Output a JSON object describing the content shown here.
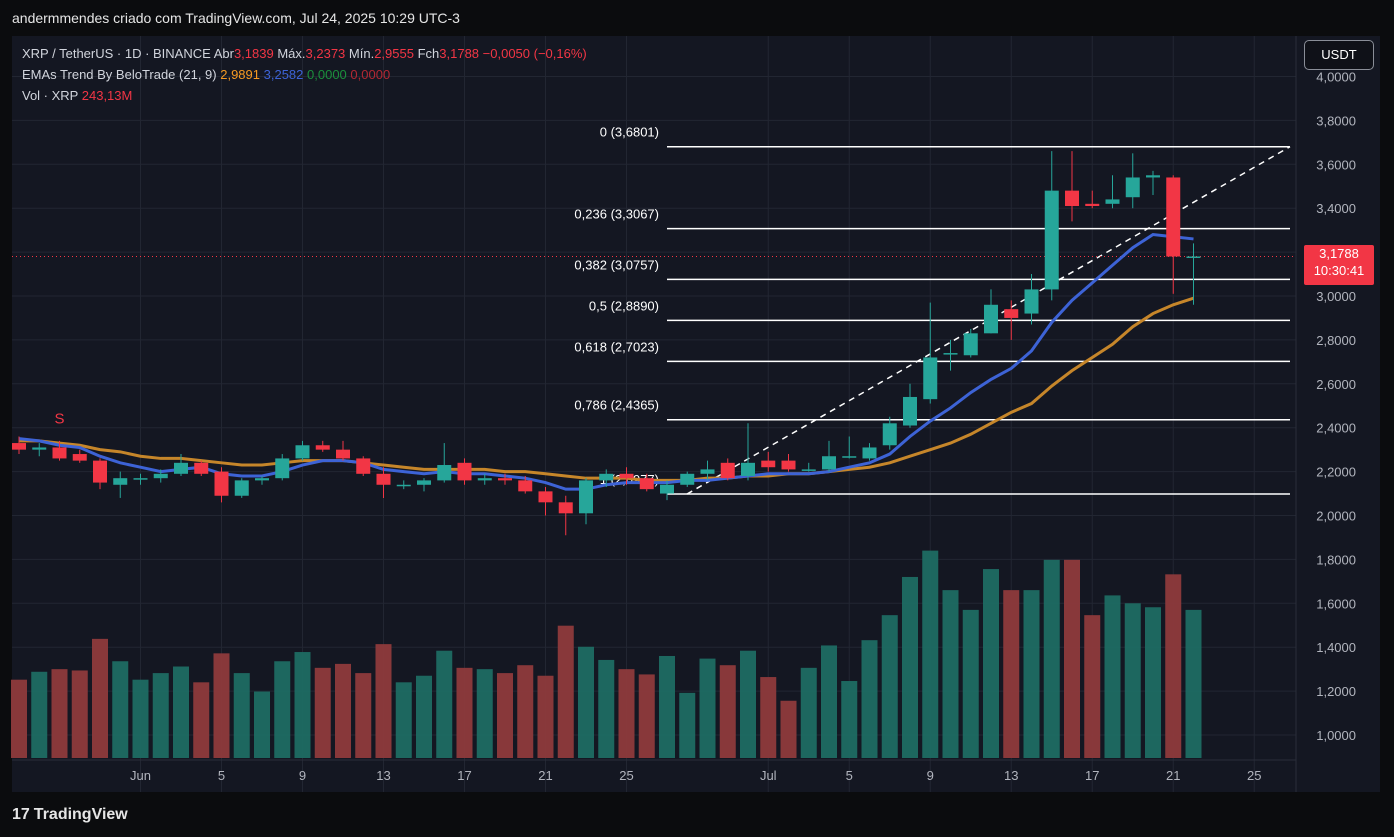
{
  "header": {
    "author_line": "andermmendes criado com TradingView.com, Jul 24, 2025 10:29 UTC-3"
  },
  "legend": {
    "symbol": "XRP / TetherUS · 1D · BINANCE",
    "open_label": "Abr",
    "open": "3,1839",
    "high_label": "Máx.",
    "high": "3,2373",
    "low_label": "Mín.",
    "low": "2,9555",
    "close_label": "Fch",
    "close": "3,1788",
    "change": "−0,0050 (−0,16%)",
    "ema_name": "EMAs Trend By BeloTrade (21, 9)",
    "ema_v1": "2,9891",
    "ema_v2": "3,2582",
    "ema_v3": "0,0000",
    "ema_v4": "0,0000",
    "vol_name": "Vol · XRP",
    "vol_value": "243,13M"
  },
  "price_axis": {
    "currency": "USDT",
    "last_price": "3,1788",
    "countdown": "10:30:41"
  },
  "footer": {
    "logo_text": "TradingView",
    "logo_mark": "17"
  },
  "colors": {
    "up": "#26a69a",
    "down": "#f23645",
    "ema_fast": "#3d63d6",
    "ema_slow": "#c6862a",
    "background": "#141722",
    "grid": "#222632"
  },
  "chart_data": {
    "type": "candlestick",
    "title": "XRP / TetherUS · 1D · BINANCE",
    "y_tick_labels": [
      "1,0000",
      "1,2000",
      "1,4000",
      "1,6000",
      "1,8000",
      "2,0000",
      "2,2000",
      "2,4000",
      "2,6000",
      "2,8000",
      "3,0000",
      "3,2000",
      "3,4000",
      "3,6000",
      "3,8000",
      "4,0000"
    ],
    "x_tick_labels": [
      "Jun",
      "5",
      "9",
      "13",
      "17",
      "21",
      "25",
      "Jul",
      "5",
      "9",
      "13",
      "17",
      "21",
      "25"
    ],
    "ylim": [
      0.9,
      4.05
    ],
    "candles": [
      {
        "date": "2025-05-31",
        "o": 2.33,
        "h": 2.36,
        "l": 2.28,
        "c": 2.3
      },
      {
        "date": "2025-06-01",
        "o": 2.3,
        "h": 2.33,
        "l": 2.27,
        "c": 2.31
      },
      {
        "date": "2025-06-02",
        "o": 2.31,
        "h": 2.34,
        "l": 2.25,
        "c": 2.26
      },
      {
        "date": "2025-06-03",
        "o": 2.28,
        "h": 2.3,
        "l": 2.24,
        "c": 2.25
      },
      {
        "date": "2025-06-04",
        "o": 2.25,
        "h": 2.26,
        "l": 2.12,
        "c": 2.15
      },
      {
        "date": "2025-06-05",
        "o": 2.14,
        "h": 2.2,
        "l": 2.08,
        "c": 2.17
      },
      {
        "date": "2025-06-06",
        "o": 2.17,
        "h": 2.19,
        "l": 2.14,
        "c": 2.17
      },
      {
        "date": "2025-06-07",
        "o": 2.17,
        "h": 2.21,
        "l": 2.15,
        "c": 2.19
      },
      {
        "date": "2025-06-08",
        "o": 2.19,
        "h": 2.28,
        "l": 2.18,
        "c": 2.24
      },
      {
        "date": "2025-06-09",
        "o": 2.24,
        "h": 2.25,
        "l": 2.18,
        "c": 2.19
      },
      {
        "date": "2025-06-10",
        "o": 2.2,
        "h": 2.22,
        "l": 2.06,
        "c": 2.09
      },
      {
        "date": "2025-06-11",
        "o": 2.09,
        "h": 2.17,
        "l": 2.08,
        "c": 2.16
      },
      {
        "date": "2025-06-12",
        "o": 2.16,
        "h": 2.18,
        "l": 2.14,
        "c": 2.17
      },
      {
        "date": "2025-06-13",
        "o": 2.17,
        "h": 2.28,
        "l": 2.16,
        "c": 2.26
      },
      {
        "date": "2025-06-14",
        "o": 2.26,
        "h": 2.34,
        "l": 2.25,
        "c": 2.32
      },
      {
        "date": "2025-06-15",
        "o": 2.32,
        "h": 2.34,
        "l": 2.29,
        "c": 2.3
      },
      {
        "date": "2025-06-16",
        "o": 2.3,
        "h": 2.34,
        "l": 2.25,
        "c": 2.26
      },
      {
        "date": "2025-06-17",
        "o": 2.26,
        "h": 2.27,
        "l": 2.18,
        "c": 2.19
      },
      {
        "date": "2025-06-18",
        "o": 2.19,
        "h": 2.22,
        "l": 2.08,
        "c": 2.14
      },
      {
        "date": "2025-06-19",
        "o": 2.14,
        "h": 2.16,
        "l": 2.12,
        "c": 2.14
      },
      {
        "date": "2025-06-20",
        "o": 2.14,
        "h": 2.17,
        "l": 2.11,
        "c": 2.16
      },
      {
        "date": "2025-06-21",
        "o": 2.16,
        "h": 2.33,
        "l": 2.15,
        "c": 2.23
      },
      {
        "date": "2025-06-22",
        "o": 2.24,
        "h": 2.26,
        "l": 2.14,
        "c": 2.16
      },
      {
        "date": "2025-06-23",
        "o": 2.16,
        "h": 2.19,
        "l": 2.14,
        "c": 2.17
      },
      {
        "date": "2025-06-24",
        "o": 2.17,
        "h": 2.19,
        "l": 2.14,
        "c": 2.16
      },
      {
        "date": "2025-06-25",
        "o": 2.16,
        "h": 2.18,
        "l": 2.1,
        "c": 2.11
      },
      {
        "date": "2025-06-26",
        "o": 2.11,
        "h": 2.13,
        "l": 2.0,
        "c": 2.06
      },
      {
        "date": "2025-06-27",
        "o": 2.06,
        "h": 2.09,
        "l": 1.91,
        "c": 2.01
      },
      {
        "date": "2025-06-28",
        "o": 2.01,
        "h": 2.17,
        "l": 1.96,
        "c": 2.16
      },
      {
        "date": "2025-06-29",
        "o": 2.16,
        "h": 2.21,
        "l": 2.13,
        "c": 2.19
      },
      {
        "date": "2025-06-30",
        "o": 2.19,
        "h": 2.22,
        "l": 2.14,
        "c": 2.17
      },
      {
        "date": "2025-07-01",
        "o": 2.17,
        "h": 2.19,
        "l": 2.11,
        "c": 2.12
      },
      {
        "date": "2025-07-02",
        "o": 2.1,
        "h": 2.16,
        "l": 2.07,
        "c": 2.14
      },
      {
        "date": "2025-07-03",
        "o": 2.14,
        "h": 2.2,
        "l": 2.13,
        "c": 2.19
      },
      {
        "date": "2025-07-04",
        "o": 2.19,
        "h": 2.25,
        "l": 2.16,
        "c": 2.21
      },
      {
        "date": "2025-07-05",
        "o": 2.24,
        "h": 2.26,
        "l": 2.16,
        "c": 2.17
      },
      {
        "date": "2025-07-06",
        "o": 2.18,
        "h": 2.42,
        "l": 2.16,
        "c": 2.24
      },
      {
        "date": "2025-07-07",
        "o": 2.25,
        "h": 2.29,
        "l": 2.2,
        "c": 2.22
      },
      {
        "date": "2025-07-08",
        "o": 2.25,
        "h": 2.28,
        "l": 2.2,
        "c": 2.21
      },
      {
        "date": "2025-07-09",
        "o": 2.21,
        "h": 2.24,
        "l": 2.2,
        "c": 2.21
      },
      {
        "date": "2025-07-10",
        "o": 2.21,
        "h": 2.34,
        "l": 2.2,
        "c": 2.27
      },
      {
        "date": "2025-07-11",
        "o": 2.27,
        "h": 2.36,
        "l": 2.26,
        "c": 2.27
      },
      {
        "date": "2025-07-12",
        "o": 2.26,
        "h": 2.33,
        "l": 2.25,
        "c": 2.31
      },
      {
        "date": "2025-07-13",
        "o": 2.32,
        "h": 2.45,
        "l": 2.3,
        "c": 2.42
      },
      {
        "date": "2025-07-14",
        "o": 2.41,
        "h": 2.6,
        "l": 2.4,
        "c": 2.54
      },
      {
        "date": "2025-07-15",
        "o": 2.53,
        "h": 2.97,
        "l": 2.51,
        "c": 2.72
      },
      {
        "date": "2025-07-16",
        "o": 2.74,
        "h": 2.8,
        "l": 2.66,
        "c": 2.74
      },
      {
        "date": "2025-07-17",
        "o": 2.73,
        "h": 2.85,
        "l": 2.72,
        "c": 2.83
      },
      {
        "date": "2025-07-18",
        "o": 2.83,
        "h": 3.03,
        "l": 2.83,
        "c": 2.96
      },
      {
        "date": "2025-07-19",
        "o": 2.94,
        "h": 2.98,
        "l": 2.8,
        "c": 2.9
      },
      {
        "date": "2025-07-20",
        "o": 2.92,
        "h": 3.1,
        "l": 2.87,
        "c": 3.03
      },
      {
        "date": "2025-07-21",
        "o": 3.03,
        "h": 3.66,
        "l": 2.98,
        "c": 3.48
      },
      {
        "date": "2025-07-22",
        "o": 3.48,
        "h": 3.66,
        "l": 3.34,
        "c": 3.41
      },
      {
        "date": "2025-07-23",
        "o": 3.42,
        "h": 3.48,
        "l": 3.4,
        "c": 3.41
      },
      {
        "date": "2025-07-24",
        "o": 3.42,
        "h": 3.55,
        "l": 3.4,
        "c": 3.44
      },
      {
        "date": "2025-07-25",
        "o": 3.45,
        "h": 3.65,
        "l": 3.4,
        "c": 3.54
      },
      {
        "date": "2025-07-26",
        "o": 3.54,
        "h": 3.57,
        "l": 3.46,
        "c": 3.55
      },
      {
        "date": "2025-07-27",
        "o": 3.54,
        "h": 3.55,
        "l": 3.01,
        "c": 3.18
      },
      {
        "date": "2025-07-28",
        "o": 3.18,
        "h": 3.24,
        "l": 2.96,
        "c": 3.18
      }
    ],
    "volume_relative": [
      0.42,
      0.48,
      0.5,
      0.49,
      0.73,
      0.56,
      0.42,
      0.47,
      0.52,
      0.4,
      0.62,
      0.47,
      0.33,
      0.56,
      0.63,
      0.51,
      0.54,
      0.47,
      0.69,
      0.4,
      0.45,
      0.64,
      0.51,
      0.5,
      0.47,
      0.53,
      0.45,
      0.83,
      0.67,
      0.57,
      0.5,
      0.46,
      0.6,
      0.32,
      0.58,
      0.53,
      0.64,
      0.44,
      0.26,
      0.51,
      0.68,
      0.41,
      0.72,
      0.91,
      1.2,
      1.4,
      1.1,
      0.95,
      1.26,
      1.1,
      1.1,
      1.33,
      1.33,
      0.91,
      1.06,
      1.0,
      0.97,
      1.22,
      0.95
    ],
    "ema_slow": [
      2.34,
      2.34,
      2.33,
      2.32,
      2.3,
      2.29,
      2.27,
      2.26,
      2.26,
      2.25,
      2.24,
      2.23,
      2.23,
      2.24,
      2.25,
      2.25,
      2.25,
      2.24,
      2.23,
      2.22,
      2.21,
      2.21,
      2.21,
      2.21,
      2.2,
      2.2,
      2.19,
      2.18,
      2.17,
      2.17,
      2.17,
      2.16,
      2.16,
      2.16,
      2.17,
      2.17,
      2.18,
      2.18,
      2.19,
      2.19,
      2.2,
      2.21,
      2.22,
      2.24,
      2.27,
      2.3,
      2.33,
      2.37,
      2.42,
      2.47,
      2.51,
      2.59,
      2.66,
      2.72,
      2.78,
      2.86,
      2.92,
      2.96,
      2.99
    ],
    "ema_fast": [
      2.35,
      2.34,
      2.32,
      2.31,
      2.27,
      2.24,
      2.22,
      2.2,
      2.21,
      2.22,
      2.19,
      2.18,
      2.18,
      2.2,
      2.23,
      2.25,
      2.25,
      2.24,
      2.21,
      2.2,
      2.19,
      2.2,
      2.19,
      2.19,
      2.18,
      2.17,
      2.15,
      2.12,
      2.12,
      2.14,
      2.15,
      2.15,
      2.15,
      2.16,
      2.16,
      2.17,
      2.18,
      2.19,
      2.19,
      2.19,
      2.2,
      2.22,
      2.24,
      2.28,
      2.36,
      2.43,
      2.49,
      2.56,
      2.62,
      2.67,
      2.75,
      2.88,
      2.98,
      3.06,
      3.14,
      3.22,
      3.28,
      3.27,
      3.26
    ],
    "fib_levels": [
      {
        "label": "0 (3,6801)",
        "value": 3.6801
      },
      {
        "label": "0,236 (3,3067)",
        "value": 3.3067
      },
      {
        "label": "0,382 (3,0757)",
        "value": 3.0757
      },
      {
        "label": "0,5 (2,8890)",
        "value": 2.889
      },
      {
        "label": "0,618 (2,7023)",
        "value": 2.7023
      },
      {
        "label": "0,786 (2,4365)",
        "value": 2.4365
      },
      {
        "label": "1 (2,0977)",
        "value": 2.0977
      }
    ],
    "annotations": [
      "S"
    ],
    "grid": true
  }
}
